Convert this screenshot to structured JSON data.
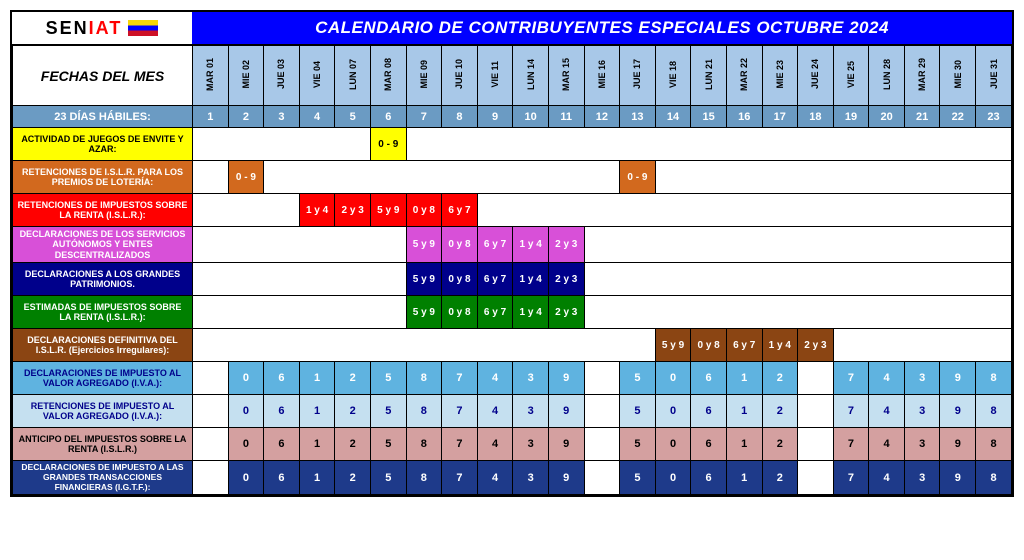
{
  "title": "CALENDARIO DE CONTRIBUYENTES ESPECIALES OCTUBRE 2024",
  "logo": {
    "pre": "SEN",
    "post": "IAT"
  },
  "datesHeader": "FECHAS DEL MES",
  "habilesHeader": "23 DÍAS HÁBILES:",
  "dates": [
    "MAR 01",
    "MIE 02",
    "JUE 03",
    "VIE 04",
    "LUN 07",
    "MAR 08",
    "MIE 09",
    "JUE 10",
    "VIE 11",
    "LUN 14",
    "MAR 15",
    "MIE 16",
    "JUE 17",
    "VIE 18",
    "LUN 21",
    "MAR 22",
    "MIE 23",
    "JUE 24",
    "VIE 25",
    "LUN 28",
    "MAR 29",
    "MIE 30",
    "JUE 31"
  ],
  "dayNums": [
    "1",
    "2",
    "3",
    "4",
    "5",
    "6",
    "7",
    "8",
    "9",
    "10",
    "11",
    "12",
    "13",
    "14",
    "15",
    "16",
    "17",
    "18",
    "19",
    "20",
    "21",
    "22",
    "23"
  ],
  "colors": {
    "yellow": "#ffff00",
    "orange": "#d2691e",
    "red": "#ff0000",
    "magenta": "#d850d8",
    "darkblue": "#00008b",
    "green": "#008000",
    "brown": "#8b4513",
    "lightblue": "#5fb3e0",
    "paleblue": "#c5e0f0",
    "rose": "#d4a0a0",
    "navy": "#1e3a8a",
    "black": "#000000",
    "white": "#ffffff"
  },
  "segRows": [
    {
      "label": "ACTIVIDAD DE JUEGOS DE ENVITE Y AZAR:",
      "labelBg": "yellow",
      "labelFg": "black",
      "segBg": "yellow",
      "segFg": "black",
      "segments": [
        {
          "start": 6,
          "values": [
            "0 - 9"
          ]
        }
      ]
    },
    {
      "label": "RETENCIONES DE I.S.L.R. PARA LOS PREMIOS DE LOTERÍA:",
      "labelBg": "orange",
      "labelFg": "white",
      "segBg": "orange",
      "segFg": "white",
      "segments": [
        {
          "start": 2,
          "values": [
            "0 - 9"
          ]
        },
        {
          "start": 13,
          "values": [
            "0 - 9"
          ]
        }
      ]
    },
    {
      "label": "RETENCIONES DE IMPUESTOS SOBRE LA RENTA (I.S.L.R.):",
      "labelBg": "red",
      "labelFg": "white",
      "segBg": "red",
      "segFg": "white",
      "segments": [
        {
          "start": 4,
          "values": [
            "1 y 4",
            "2 y 3",
            "5 y 9",
            "0 y 8",
            "6 y 7"
          ]
        }
      ]
    },
    {
      "label": "DECLARACIONES DE LOS SERVICIOS AUTÓNOMOS Y ENTES DESCENTRALIZADOS",
      "labelBg": "magenta",
      "labelFg": "white",
      "segBg": "magenta",
      "segFg": "white",
      "lines": 3,
      "segments": [
        {
          "start": 7,
          "values": [
            "5 y 9",
            "0 y 8",
            "6 y 7",
            "1 y 4",
            "2 y 3"
          ]
        }
      ]
    },
    {
      "label": "DECLARACIONES A LOS GRANDES PATRIMONIOS.",
      "labelBg": "darkblue",
      "labelFg": "white",
      "segBg": "darkblue",
      "segFg": "white",
      "segments": [
        {
          "start": 7,
          "values": [
            "5 y 9",
            "0 y 8",
            "6 y 7",
            "1 y 4",
            "2 y 3"
          ]
        }
      ]
    },
    {
      "label": "ESTIMADAS DE IMPUESTOS SOBRE LA RENTA (I.S.L.R.):",
      "labelBg": "green",
      "labelFg": "white",
      "segBg": "green",
      "segFg": "white",
      "segments": [
        {
          "start": 7,
          "values": [
            "5 y 9",
            "0 y 8",
            "6 y 7",
            "1 y 4",
            "2 y 3"
          ]
        }
      ]
    },
    {
      "label": "DECLARACIONES DEFINITIVA DEL I.S.L.R. (Ejercicios Irregulares):",
      "labelBg": "brown",
      "labelFg": "white",
      "segBg": "brown",
      "segFg": "white",
      "segments": [
        {
          "start": 14,
          "values": [
            "5 y 9",
            "0 y 8",
            "6 y 7",
            "1 y 4",
            "2 y 3"
          ]
        }
      ]
    }
  ],
  "valRows": [
    {
      "label": "DECLARACIONES DE IMPUESTO AL VALOR AGREGADO (I.V.A.):",
      "labelBg": "lightblue",
      "labelFg": "darkblue",
      "cellBg": "lightblue",
      "cellFg": "white"
    },
    {
      "label": "RETENCIONES DE IMPUESTO AL VALOR AGREGADO (I.V.A.):",
      "labelBg": "paleblue",
      "labelFg": "darkblue",
      "cellBg": "paleblue",
      "cellFg": "darkblue"
    },
    {
      "label": "ANTICIPO DEL IMPUESTOS SOBRE LA RENTA (I.S.L.R.)",
      "labelBg": "rose",
      "labelFg": "black",
      "cellBg": "rose",
      "cellFg": "black"
    },
    {
      "label": "DECLARACIONES DE IMPUESTO A LAS GRANDES TRANSACCIONES FINANCIERAS (I.G.T.F.):",
      "labelBg": "navy",
      "labelFg": "white",
      "cellBg": "navy",
      "cellFg": "white",
      "lines": 3
    }
  ],
  "valValues": [
    "",
    "0",
    "6",
    "1",
    "2",
    "5",
    "8",
    "7",
    "4",
    "3",
    "9",
    "",
    "5",
    "0",
    "6",
    "1",
    "2",
    "",
    "7",
    "4",
    "3",
    "9",
    "8"
  ]
}
